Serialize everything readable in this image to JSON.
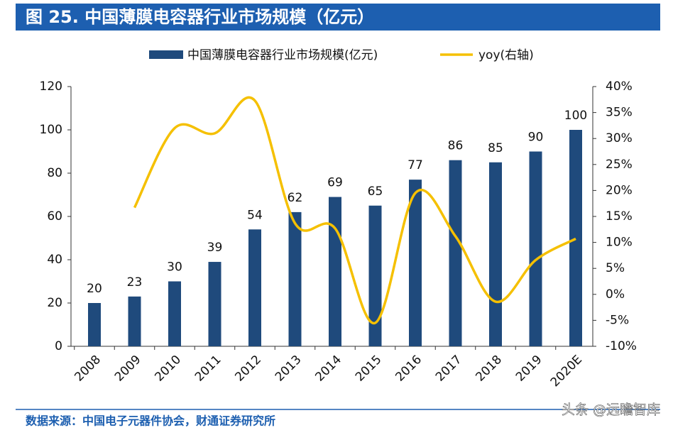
{
  "chart_data": {
    "type": "bar",
    "title": "图 25. 中国薄膜电容器行业市场规模（亿元）",
    "source": "数据来源：中国电子元器件协会，财通证券研究所",
    "watermark": "头条 @远瞻智库",
    "categories": [
      "2008",
      "2009",
      "2010",
      "2011",
      "2012",
      "2013",
      "2014",
      "2015",
      "2016",
      "2017",
      "2018",
      "2019",
      "2020E"
    ],
    "series": [
      {
        "name": "中国薄膜电容器行业市场规模(亿元)",
        "type": "bar",
        "color": "#1f4a7c",
        "values": [
          20,
          23,
          30,
          39,
          54,
          62,
          69,
          65,
          77,
          86,
          85,
          90,
          100
        ]
      },
      {
        "name": "yoy(右轴)",
        "type": "line",
        "axis": "y2",
        "color": "#f5c000",
        "values": [
          null,
          16.7,
          32,
          31,
          37.3,
          13.7,
          12.7,
          -5.5,
          19.5,
          11.2,
          -1.4,
          6.6,
          10.7
        ]
      }
    ],
    "ylim": [
      0,
      120
    ],
    "yticks": [
      0,
      20,
      40,
      60,
      80,
      100,
      120
    ],
    "y2lim": [
      -10,
      40
    ],
    "y2ticks": [
      {
        "value": -10,
        "label": "-10%"
      },
      {
        "value": -5,
        "label": "-5%"
      },
      {
        "value": 0,
        "label": "0%"
      },
      {
        "value": 5,
        "label": "5%"
      },
      {
        "value": 10,
        "label": "10%"
      },
      {
        "value": 15,
        "label": "15%"
      },
      {
        "value": 20,
        "label": "20%"
      },
      {
        "value": 25,
        "label": "25%"
      },
      {
        "value": 30,
        "label": "30%"
      },
      {
        "value": 35,
        "label": "35%"
      },
      {
        "value": 40,
        "label": "40%"
      }
    ],
    "legend": "top"
  }
}
